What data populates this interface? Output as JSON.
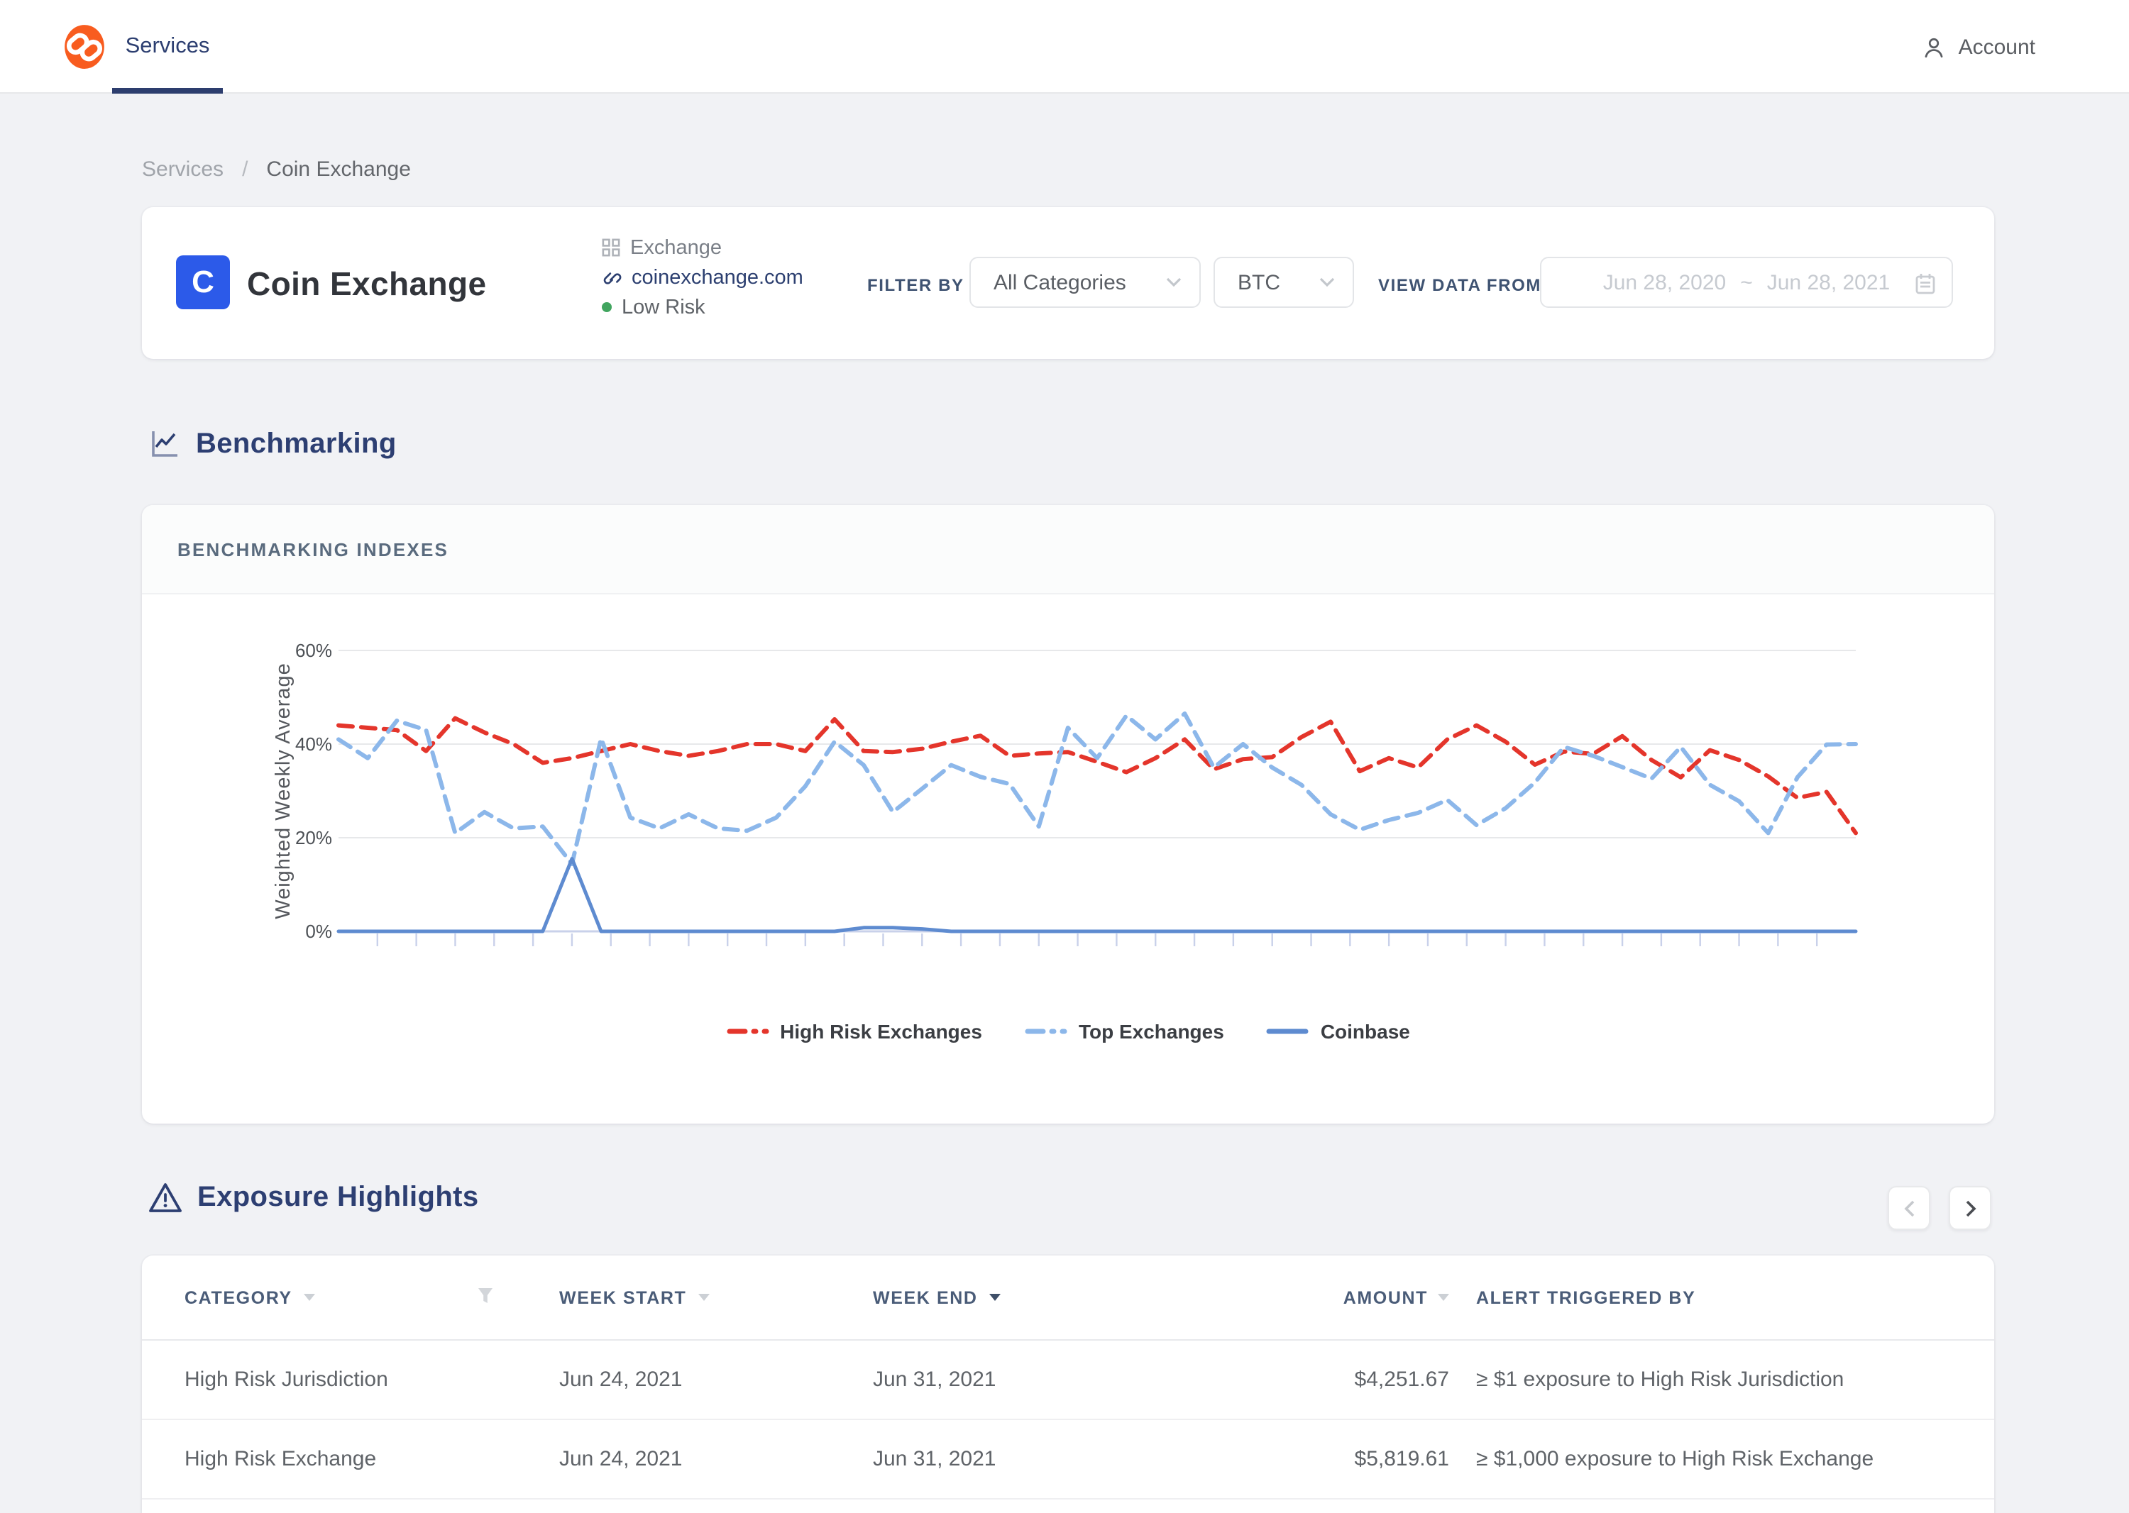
{
  "nav": {
    "tab": "Services",
    "account": "Account"
  },
  "breadcrumb": {
    "root": "Services",
    "separator": "/",
    "current": "Coin Exchange"
  },
  "entity": {
    "logo_letter": "C",
    "name": "Coin Exchange",
    "type": "Exchange",
    "website": "coinexchange.com",
    "risk": "Low Risk",
    "risk_color": "#41a55f",
    "logo_color": "#2c5ae9"
  },
  "filters": {
    "filter_by_label": "FILTER BY",
    "category_value": "All Categories",
    "asset_value": "BTC",
    "view_data_label": "VIEW DATA FROM",
    "date_start": "Jun 28, 2020",
    "date_separator": "~",
    "date_end": "Jun 28, 2021"
  },
  "benchmarking": {
    "section_title": "Benchmarking",
    "card_title": "BENCHMARKING INDEXES"
  },
  "chart_data": {
    "type": "line",
    "title": "BENCHMARKING INDEXES",
    "ylabel": "Weighted Weekly Average",
    "x_unit": "week",
    "x_range": [
      "Jun 28, 2020",
      "Jun 28, 2021"
    ],
    "ylim": [
      0,
      60
    ],
    "yticks": [
      0,
      20,
      40,
      60
    ],
    "ytick_labels": [
      "0%",
      "20%",
      "40%",
      "60%"
    ],
    "grid": "horizontal",
    "legend_position": "bottom",
    "series": [
      {
        "name": "High Risk Exchanges",
        "color": "#e4352b",
        "style": "dashed",
        "width": 3,
        "values": [
          44,
          43.5,
          43,
          38.5,
          45.5,
          42.5,
          40,
          36,
          37,
          38.5,
          40,
          38.5,
          37.5,
          38.5,
          40,
          40,
          38.5,
          45.3,
          38.5,
          38.3,
          39,
          40.5,
          41.8,
          37.5,
          38,
          38.3,
          36.2,
          34,
          37,
          41,
          34.6,
          36.8,
          37.2,
          41.5,
          44.8,
          34.2,
          37,
          35,
          41,
          44,
          40.5,
          35.6,
          38.4,
          37.9,
          41.7,
          36.6,
          32.9,
          38.7,
          36.6,
          33.1,
          28.5,
          29.8,
          21
        ]
      },
      {
        "name": "Top Exchanges",
        "color": "#8cb7ea",
        "style": "dashed",
        "width": 3,
        "values": [
          41,
          37,
          45,
          43,
          21,
          25.5,
          22,
          22.4,
          14.4,
          41.2,
          24.3,
          22,
          25,
          22,
          21.5,
          24.3,
          31,
          40.5,
          35.5,
          25.5,
          30.5,
          35.5,
          33,
          31.5,
          22.4,
          43.5,
          37,
          46.1,
          41,
          46.5,
          35,
          40,
          35,
          31.3,
          25,
          21.7,
          23.8,
          25.3,
          28.1,
          22.7,
          26.3,
          31.8,
          39.4,
          37.5,
          35.1,
          32.6,
          39.4,
          31.3,
          27.8,
          21,
          32.9,
          39.9,
          40
        ]
      },
      {
        "name": "Coinbase",
        "color": "#5e8bd0",
        "style": "solid",
        "width": 2.5,
        "values": [
          0,
          0,
          0,
          0,
          0,
          0,
          0,
          0,
          15.5,
          0,
          0,
          0,
          0,
          0,
          0,
          0,
          0,
          0,
          0.8,
          0.8,
          0.5,
          0,
          0,
          0,
          0,
          0,
          0,
          0,
          0,
          0,
          0,
          0,
          0,
          0,
          0,
          0,
          0,
          0,
          0,
          0,
          0,
          0,
          0,
          0,
          0,
          0,
          0,
          0,
          0,
          0,
          0,
          0,
          0
        ]
      }
    ]
  },
  "exposure": {
    "section_title": "Exposure Highlights",
    "pagination": {
      "prev_enabled": false,
      "next_enabled": true
    },
    "columns": [
      {
        "label": "CATEGORY",
        "sort": "inactive"
      },
      {
        "label": "WEEK START",
        "sort": "inactive"
      },
      {
        "label": "WEEK END",
        "sort": "desc-active"
      },
      {
        "label": "AMOUNT",
        "sort": "inactive"
      },
      {
        "label": "ALERT TRIGGERED BY",
        "sort": "none"
      }
    ],
    "rows": [
      {
        "category": "High Risk Jurisdiction",
        "week_start": "Jun 24, 2021",
        "week_end": "Jun 31, 2021",
        "amount": "$4,251.67",
        "alert": "≥ $1 exposure to High Risk Jurisdiction"
      },
      {
        "category": "High Risk Exchange",
        "week_start": "Jun 24, 2021",
        "week_end": "Jun 31, 2021",
        "amount": "$5,819.61",
        "alert": "≥ $1,000 exposure to High Risk Exchange"
      }
    ]
  },
  "icons": {
    "brand": "chain-logo",
    "account": "person-icon",
    "entity_type": "grid-icon",
    "website": "link-icon",
    "date": "calendar-icon",
    "benchmarking": "line-chart-icon",
    "exposure": "warning-triangle-icon",
    "category_filter": "funnel-icon"
  }
}
